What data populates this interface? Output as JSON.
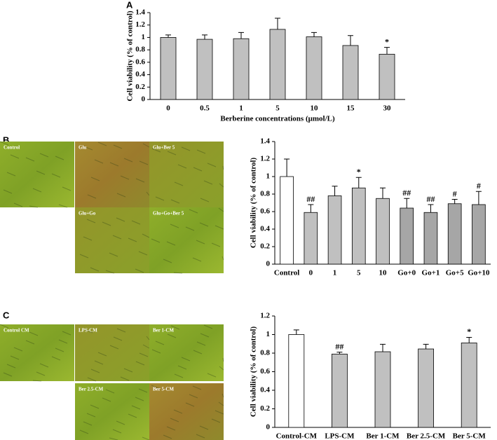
{
  "panels": [
    {
      "label": "A"
    },
    {
      "label": "B",
      "images": [
        "Control",
        "Glu",
        "Glu+Ber 5",
        "Glu+Go",
        "Glu+Go+Ber 5"
      ]
    },
    {
      "label": "C",
      "images": [
        "Control CM",
        "LPS-CM",
        "Ber 1-CM",
        "Ber 2.5-CM",
        "Ber 5-CM"
      ]
    }
  ],
  "chart_data": [
    {
      "type": "bar",
      "y_label": "Cell viability (% of control)",
      "x_label": "Berberine concentrations (μmol/L)",
      "categories": [
        "0",
        "0.5",
        "1",
        "5",
        "10",
        "15",
        "30"
      ],
      "values": [
        1.0,
        0.97,
        0.98,
        1.13,
        1.01,
        0.87,
        0.73
      ],
      "errors": [
        0.04,
        0.07,
        0.1,
        0.18,
        0.07,
        0.16,
        0.11
      ],
      "annotations": [
        null,
        null,
        null,
        null,
        null,
        null,
        "*"
      ],
      "colors": [
        "#c0c0c0",
        "#c0c0c0",
        "#c0c0c0",
        "#c0c0c0",
        "#c0c0c0",
        "#c0c0c0",
        "#c0c0c0"
      ],
      "ylim": [
        0,
        1.4
      ],
      "yticks": [
        0,
        0.2,
        0.4,
        0.6,
        0.8,
        1,
        1.2,
        1.4
      ]
    },
    {
      "type": "bar",
      "y_label": "Cell viability (% of control)",
      "categories": [
        "Control",
        "0",
        "1",
        "5",
        "10",
        "Go+0",
        "Go+1",
        "Go+5",
        "Go+10"
      ],
      "values": [
        1.0,
        0.59,
        0.78,
        0.87,
        0.75,
        0.64,
        0.59,
        0.69,
        0.68
      ],
      "errors": [
        0.2,
        0.09,
        0.11,
        0.12,
        0.12,
        0.11,
        0.09,
        0.05,
        0.15
      ],
      "annotations": [
        null,
        "##",
        null,
        "*",
        null,
        "##",
        "##",
        "#",
        "#"
      ],
      "colors": [
        "#ffffff",
        "#c0c0c0",
        "#c0c0c0",
        "#c0c0c0",
        "#c0c0c0",
        "#a6a6a6",
        "#a6a6a6",
        "#a6a6a6",
        "#a6a6a6"
      ],
      "ylim": [
        0,
        1.4
      ],
      "yticks": [
        0,
        0.2,
        0.4,
        0.6,
        0.8,
        1,
        1.2,
        1.4
      ]
    },
    {
      "type": "bar",
      "y_label": "Cell viability (% of control)",
      "categories": [
        "Control-CM",
        "LPS-CM",
        "Ber 1-CM",
        "Ber 2.5-CM",
        "Ber 5-CM"
      ],
      "values": [
        1.0,
        0.79,
        0.815,
        0.845,
        0.91
      ],
      "errors": [
        0.05,
        0.02,
        0.08,
        0.05,
        0.06
      ],
      "annotations": [
        null,
        "##",
        null,
        null,
        "*"
      ],
      "colors": [
        "#ffffff",
        "#c0c0c0",
        "#c0c0c0",
        "#c0c0c0",
        "#c0c0c0"
      ],
      "ylim": [
        0,
        1.2
      ],
      "yticks": [
        0,
        0.2,
        0.4,
        0.6,
        0.8,
        1,
        1.2
      ]
    }
  ]
}
